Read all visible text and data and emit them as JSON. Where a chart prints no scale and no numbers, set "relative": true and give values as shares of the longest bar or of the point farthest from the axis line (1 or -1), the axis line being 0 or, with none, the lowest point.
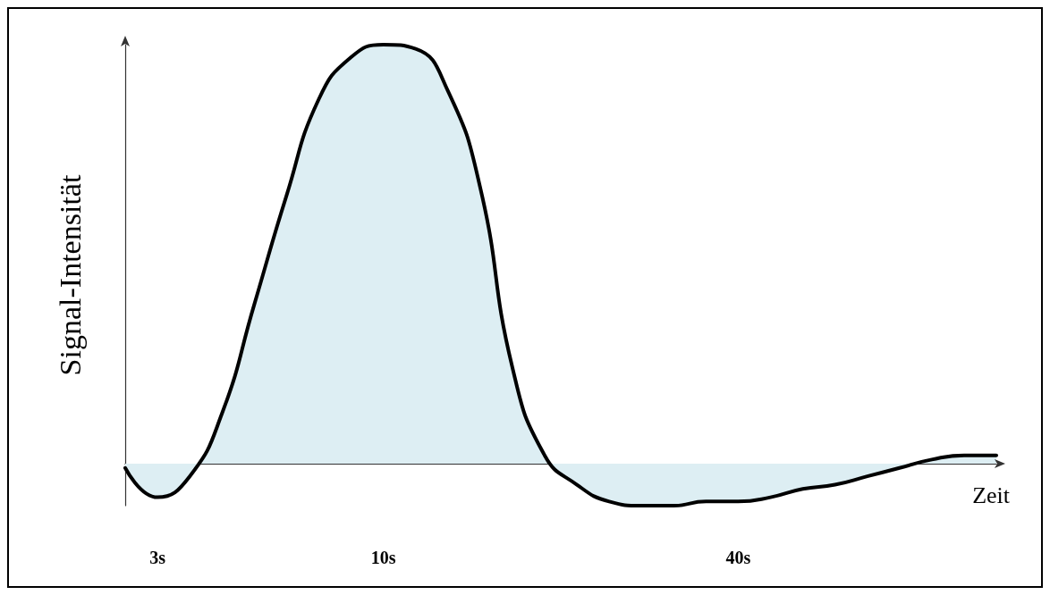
{
  "chart_data": {
    "type": "area",
    "relative": true,
    "xlabel": "Zeit",
    "ylabel": "Signal-Intensität",
    "categories": [
      null,
      "3s",
      null,
      null,
      null,
      null,
      null,
      null,
      "10s",
      null,
      null,
      null,
      null,
      null,
      null,
      null,
      null,
      null,
      null,
      "40s",
      null,
      null,
      null,
      null,
      null,
      null,
      null,
      null
    ],
    "series": [
      {
        "color": "#ddeef3",
        "values": [
          -0.01,
          -0.08,
          -0.03,
          0.12,
          0.38,
          0.64,
          0.87,
          0.97,
          1,
          0.99,
          0.89,
          0.66,
          0.23,
          0.02,
          -0.05,
          -0.09,
          -0.1,
          -0.1,
          -0.09,
          -0.09,
          -0.08,
          -0.06,
          -0.05,
          -0.03,
          -0.01,
          0.01,
          0.02,
          0.02
        ]
      }
    ],
    "grid": false,
    "marker": "none",
    "line_style": "solid"
  }
}
